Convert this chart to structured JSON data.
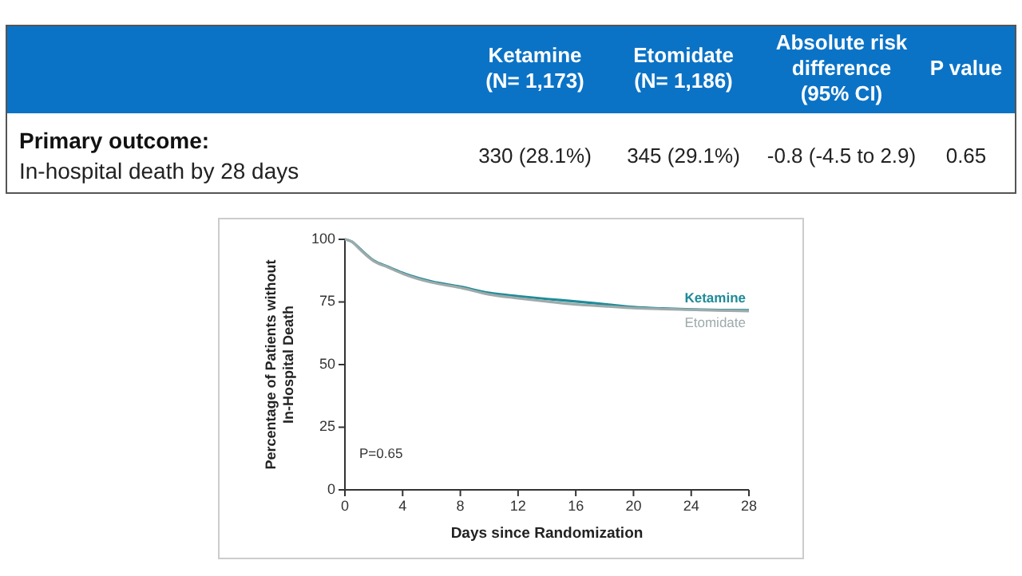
{
  "chart_data": [
    {
      "type": "other",
      "categories": [
        null,
        "Ketamine\n(N= 1,173)",
        "Etomidate\n(N= 1,186)",
        "Absolute risk\ndifference\n(95% CI)",
        "P value"
      ],
      "annotations": [
        "Primary outcome:",
        "In-hospital death by 28 days",
        "330 (28.1%)",
        "345 (29.1%)",
        "-0.8 (-4.5 to 2.9)",
        "0.65"
      ],
      "color": "#0b73c6"
    },
    {
      "type": "line",
      "xlabel": "Days since Randomization",
      "ylabel": "Percentage of Patients without\nIn-Hospital Death",
      "xlim": [
        0,
        28
      ],
      "ylim": [
        0,
        100
      ],
      "xticks": [
        0,
        4,
        8,
        12,
        16,
        20,
        24,
        28
      ],
      "yticks": [
        0,
        25,
        50,
        75,
        100
      ],
      "grid": false,
      "legend": false,
      "annotations": [
        "P=0.65"
      ],
      "series": [
        {
          "name": "Ketamine",
          "color": "#1f8c98",
          "x": [
            0,
            0.5,
            1,
            2,
            3,
            4,
            6,
            8,
            10,
            12,
            14,
            16,
            18,
            20,
            22,
            24,
            26,
            28
          ],
          "values": [
            100,
            99,
            96.4,
            91.5,
            89,
            86.6,
            83.2,
            81.1,
            78.6,
            77.3,
            76.2,
            75.2,
            74.1,
            73,
            72.4,
            72,
            71.8,
            71.7
          ]
        },
        {
          "name": "Etomidate",
          "color": "#9eaaab",
          "x": [
            0,
            0.5,
            1,
            2,
            3,
            4,
            6,
            8,
            10,
            12,
            14,
            16,
            18,
            20,
            22,
            24,
            26,
            28
          ],
          "values": [
            100,
            99,
            96.2,
            91.3,
            88.8,
            86.3,
            82.8,
            80.7,
            78,
            76.5,
            75.2,
            74,
            73.3,
            72.6,
            72.2,
            71.9,
            71.6,
            71.4
          ]
        }
      ]
    }
  ]
}
